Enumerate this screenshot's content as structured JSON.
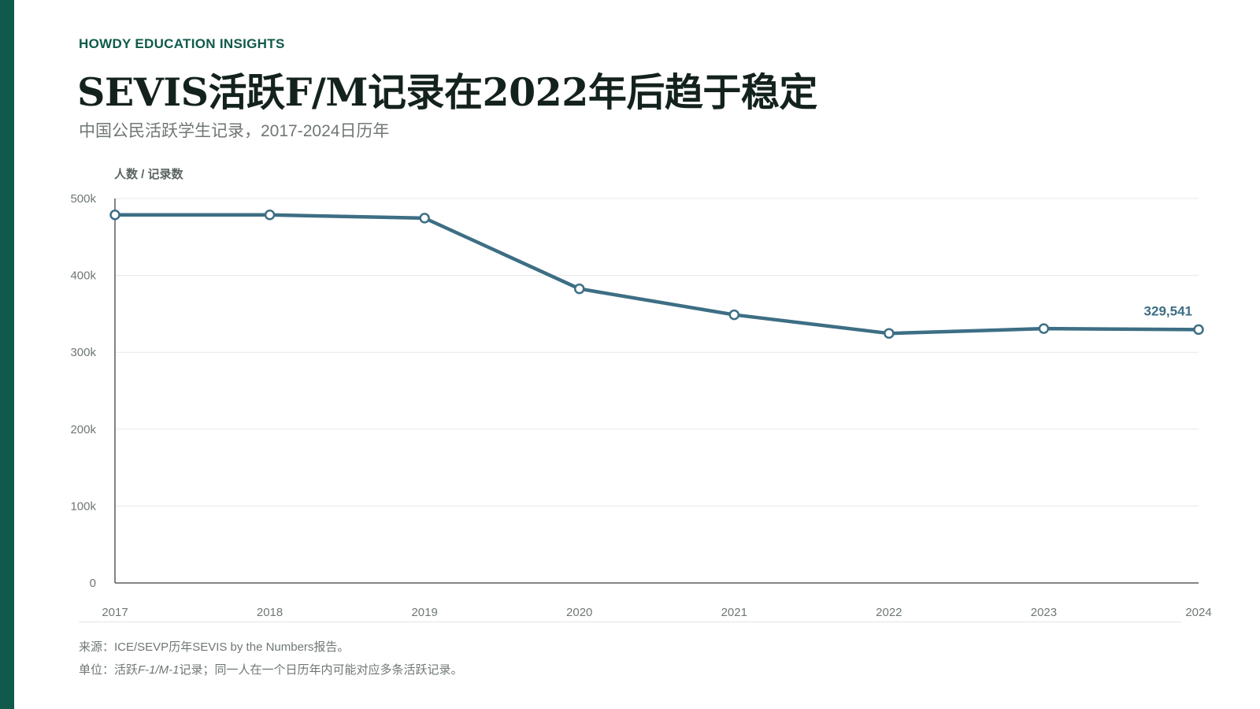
{
  "header": {
    "kicker": "HOWDY EDUCATION INSIGHTS",
    "title": "SEVIS活跃F/M记录在2022年后趋于稳定",
    "subtitle": "中国公民活跃学生记录，2017-2024日历年"
  },
  "footer": {
    "source": "来源：ICE/SEVP历年SEVIS by the Numbers报告。",
    "unit_prefix": "单位：活跃",
    "unit_italic": "F-1/M-1",
    "unit_suffix": "记录；同一人在一个日历年内可能对应多条活跃记录。"
  },
  "colors": {
    "accent": "#0f5a4a",
    "line": "#3d6e84",
    "grid": "#e6e8e7",
    "axis": "#5a5f5d"
  },
  "chart_data": {
    "type": "line",
    "title": "SEVIS活跃F/M记录在2022年后趋于稳定",
    "subtitle": "中国公民活跃学生记录，2017-2024日历年",
    "ylabel": "人数 / 记录数",
    "xlabel": "",
    "x": [
      2017,
      2018,
      2019,
      2020,
      2021,
      2022,
      2023,
      2024
    ],
    "x_tick_labels": [
      "2017",
      "2018",
      "2019",
      "2020",
      "2021",
      "2022",
      "2023",
      "2024"
    ],
    "series": [
      {
        "values": [
          478700,
          478700,
          474500,
          382600,
          348800,
          324600,
          330800,
          329541
        ]
      }
    ],
    "ylim": [
      0,
      500000
    ],
    "y_ticks": [
      0,
      100000,
      200000,
      300000,
      400000,
      500000
    ],
    "y_tick_labels": [
      "0",
      "100k",
      "200k",
      "300k",
      "400k",
      "500k"
    ],
    "grid": true,
    "annotations": [
      {
        "x": 2024,
        "text": "329,541"
      }
    ]
  }
}
